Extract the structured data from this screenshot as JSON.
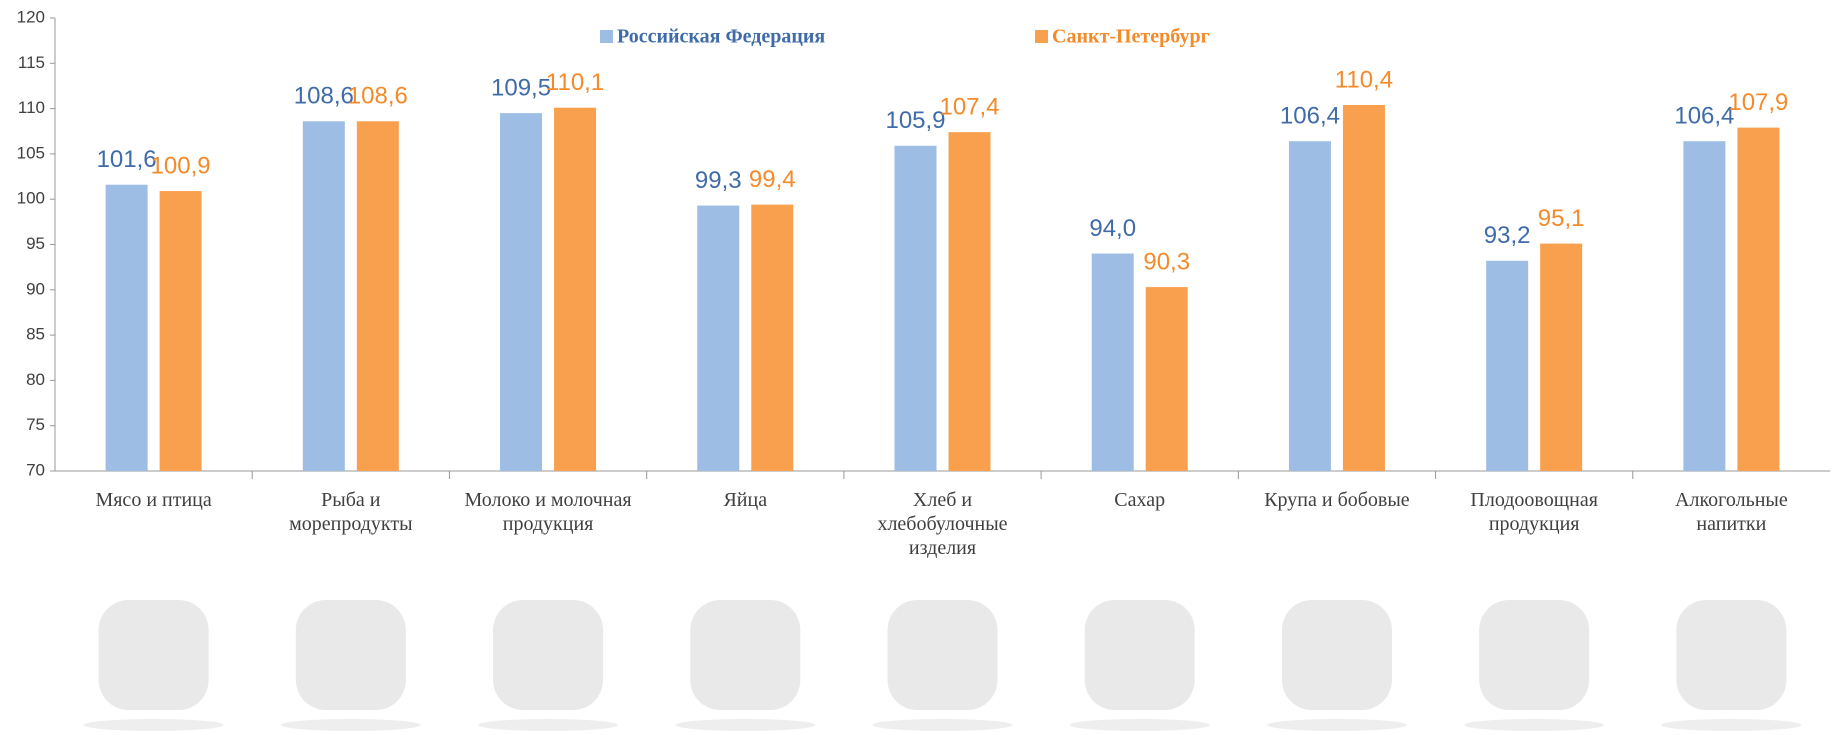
{
  "chart_data": {
    "type": "bar",
    "categories": [
      "Мясо и птица",
      "Рыба и морепродукты",
      "Молоко и молочная продукция",
      "Яйца",
      "Хлеб и хлебобулочные изделия",
      "Сахар",
      "Крупа и бобовые",
      "Плодоовощная продукция",
      "Алкогольные напитки"
    ],
    "series": [
      {
        "name": "Российская Федерация",
        "color": "#9dbde4",
        "label_color": "#3f6ba8",
        "values": [
          101.6,
          108.6,
          109.5,
          99.3,
          105.9,
          94.0,
          106.4,
          93.2,
          106.4
        ],
        "value_labels": [
          "101,6",
          "108,6",
          "109,5",
          "99,3",
          "105,9",
          "94,0",
          "106,4",
          "93,2",
          "106,4"
        ]
      },
      {
        "name": "Санкт-Петербург",
        "color": "#f9a04e",
        "label_color": "#f48a2a",
        "values": [
          100.9,
          108.6,
          110.1,
          99.4,
          107.4,
          90.3,
          110.4,
          95.1,
          107.9
        ],
        "value_labels": [
          "100,9",
          "108,6",
          "110,1",
          "99,4",
          "107,4",
          "90,3",
          "110,4",
          "95,1",
          "107,9"
        ]
      }
    ],
    "ylim": [
      70,
      120
    ],
    "yticks": [
      70,
      75,
      80,
      85,
      90,
      95,
      100,
      105,
      110,
      115,
      120
    ],
    "grid": false
  }
}
